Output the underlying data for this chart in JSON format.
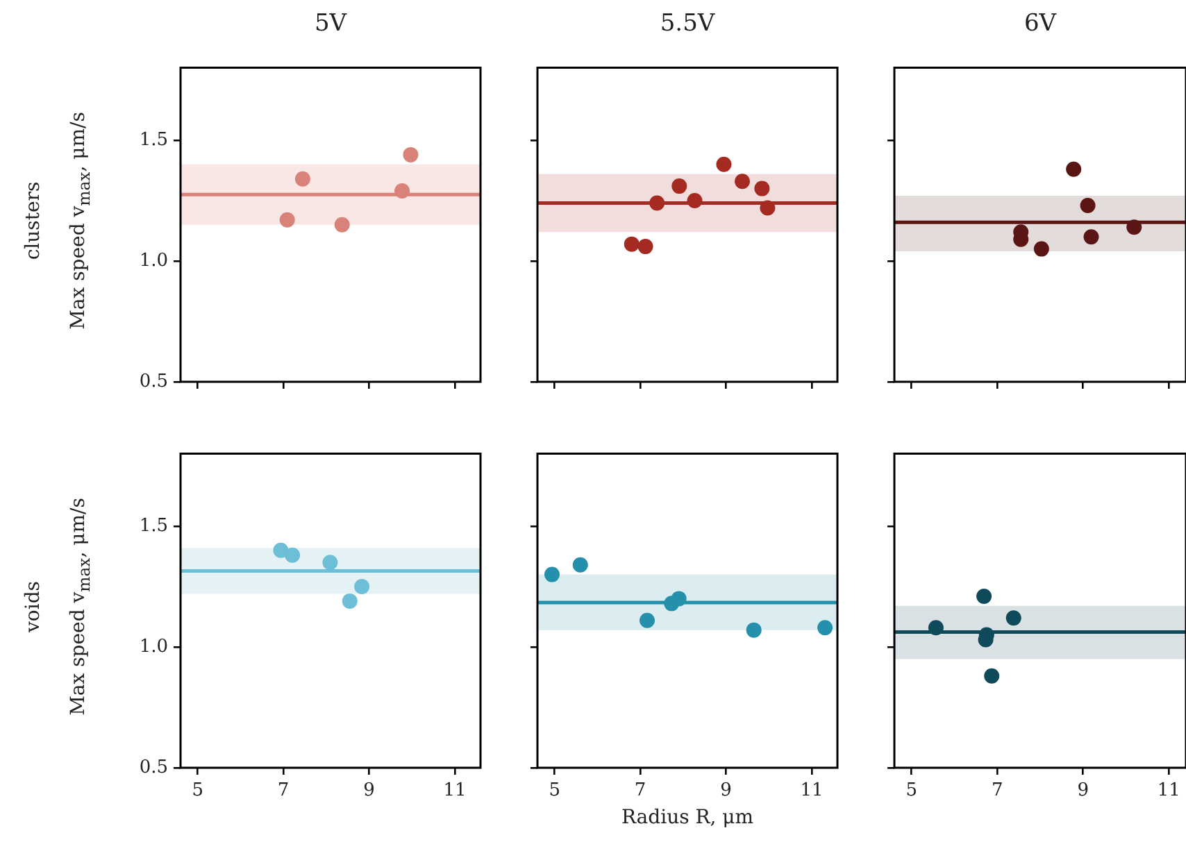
{
  "chart_data": [
    {
      "type": "scatter",
      "title": "5V",
      "ylabel": "Max speed v$_{max}$, μm/s",
      "annotations": [
        "clusters"
      ],
      "xlim": [
        4.6,
        11.6
      ],
      "xticks": [
        5,
        7,
        9,
        11
      ],
      "ylim": [
        0.5,
        1.8
      ],
      "yticks": [
        0.5,
        {
          "value": 1,
          "label": "1.0"
        },
        1.5
      ],
      "tick_labels": "y",
      "marker": "circle",
      "grid": false,
      "series": [
        {
          "color": "#d9827a",
          "x": [
            7.09,
            7.45,
            8.37,
            9.77,
            9.97
          ],
          "values": [
            1.17,
            1.34,
            1.15,
            1.29,
            1.44
          ]
        }
      ],
      "ref_lines": [
        {
          "axis": "y",
          "value": 1.275,
          "color": "#d9827a"
        }
      ],
      "bands": [
        {
          "axis": "y",
          "from": 1.15,
          "to": 1.4,
          "color": "#f8e7e5"
        }
      ]
    },
    {
      "type": "scatter",
      "title": "5.5V",
      "xlim": [
        4.6,
        11.6
      ],
      "xticks": [
        5,
        7,
        9,
        11
      ],
      "ylim": [
        0.5,
        1.8
      ],
      "yticks": [
        0.5,
        1.0,
        1.5
      ],
      "tick_labels": false,
      "marker": "circle",
      "grid": false,
      "series": [
        {
          "color": "#a52a22",
          "x": [
            6.8,
            7.12,
            7.39,
            7.91,
            8.27,
            8.95,
            9.38,
            9.84,
            9.97
          ],
          "values": [
            1.07,
            1.06,
            1.24,
            1.31,
            1.25,
            1.4,
            1.33,
            1.3,
            1.22
          ]
        }
      ],
      "ref_lines": [
        {
          "axis": "y",
          "value": 1.24,
          "color": "#a52a22"
        }
      ],
      "bands": [
        {
          "axis": "y",
          "from": 1.12,
          "to": 1.36,
          "color": "#f1dedc"
        }
      ]
    },
    {
      "type": "scatter",
      "title": "6V",
      "xlim": [
        4.6,
        11.4
      ],
      "xticks": [
        5,
        7,
        9,
        11
      ],
      "ylim": [
        0.5,
        1.8
      ],
      "yticks": [
        0.5,
        1.0,
        1.5
      ],
      "tick_labels": false,
      "marker": "circle",
      "grid": false,
      "series": [
        {
          "color": "#5a1515",
          "x": [
            7.55,
            7.55,
            8.03,
            8.78,
            9.11,
            9.19,
            10.19
          ],
          "values": [
            1.12,
            1.09,
            1.05,
            1.38,
            1.23,
            1.1,
            1.14
          ]
        }
      ],
      "ref_lines": [
        {
          "axis": "y",
          "value": 1.16,
          "color": "#5a1515"
        }
      ],
      "bands": [
        {
          "axis": "y",
          "from": 1.04,
          "to": 1.27,
          "color": "#e4dbdb"
        }
      ]
    },
    {
      "type": "scatter",
      "ylabel": "Max speed v$_{max}$, μm/s",
      "annotations": [
        "voids"
      ],
      "xlim": [
        4.6,
        11.6
      ],
      "xticks": [
        5,
        7,
        9,
        11
      ],
      "ylim": [
        0.5,
        1.8
      ],
      "yticks": [
        0.5,
        {
          "value": 1,
          "label": "1.0"
        },
        1.5
      ],
      "marker": "circle",
      "grid": false,
      "series": [
        {
          "color": "#6cbfd6",
          "x": [
            6.94,
            7.21,
            8.09,
            8.83,
            8.55
          ],
          "values": [
            1.4,
            1.38,
            1.35,
            1.25,
            1.19
          ]
        }
      ],
      "ref_lines": [
        {
          "axis": "y",
          "value": 1.315,
          "color": "#6cbfd6"
        }
      ],
      "bands": [
        {
          "axis": "y",
          "from": 1.22,
          "to": 1.41,
          "color": "#e4f2f6"
        }
      ]
    },
    {
      "type": "scatter",
      "xlabel": "Radius R, μm",
      "xlim": [
        4.6,
        11.6
      ],
      "xticks": [
        5,
        7,
        9,
        11
      ],
      "ylim": [
        0.5,
        1.8
      ],
      "yticks": [
        0.5,
        1.0,
        1.5
      ],
      "tick_labels": "x",
      "marker": "circle",
      "grid": false,
      "series": [
        {
          "color": "#2490ab",
          "x": [
            4.94,
            5.6,
            7.16,
            7.73,
            7.9,
            9.65,
            11.31
          ],
          "values": [
            1.3,
            1.34,
            1.11,
            1.18,
            1.2,
            1.07,
            1.08
          ]
        }
      ],
      "ref_lines": [
        {
          "axis": "y",
          "value": 1.184,
          "color": "#2490ab"
        }
      ],
      "bands": [
        {
          "axis": "y",
          "from": 1.07,
          "to": 1.3,
          "color": "#dcedf1"
        }
      ]
    },
    {
      "type": "scatter",
      "xlim": [
        4.6,
        11.4
      ],
      "xticks": [
        5,
        7,
        9,
        11
      ],
      "ylim": [
        0.5,
        1.8
      ],
      "yticks": [
        0.5,
        1.0,
        1.5
      ],
      "tick_labels": "x",
      "marker": "circle",
      "grid": false,
      "series": [
        {
          "color": "#0f4a5a",
          "x": [
            5.57,
            6.69,
            7.38,
            6.75,
            6.73,
            6.87
          ],
          "values": [
            1.08,
            1.21,
            1.12,
            1.05,
            1.03,
            0.88
          ]
        }
      ],
      "ref_lines": [
        {
          "axis": "y",
          "value": 1.062,
          "color": "#0f4a5a"
        }
      ],
      "bands": [
        {
          "axis": "y",
          "from": 0.95,
          "to": 1.17,
          "color": "#d9e1e4"
        }
      ]
    }
  ]
}
